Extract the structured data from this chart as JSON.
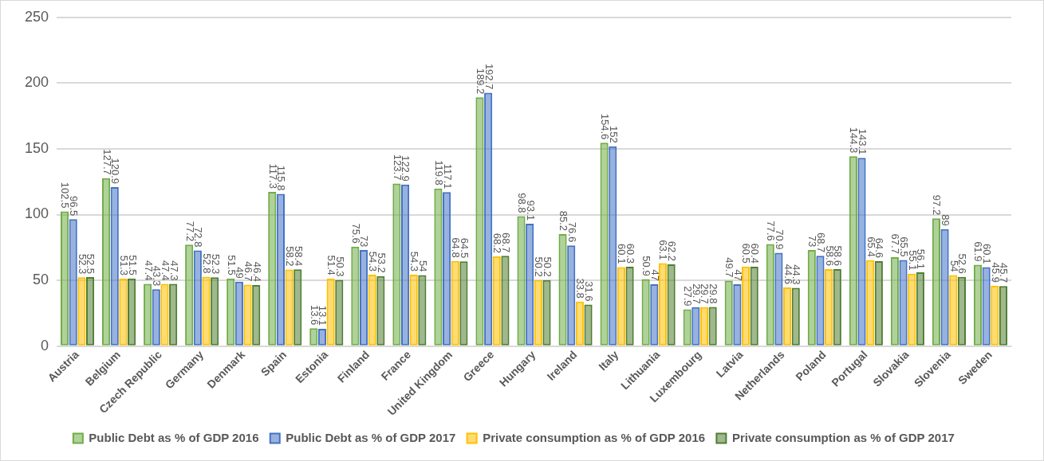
{
  "chart_data": {
    "type": "bar",
    "categories": [
      "Austria",
      "Belgium",
      "Czech Republic",
      "Germany",
      "Denmark",
      "Spain",
      "Estonia",
      "Finland",
      "France",
      "United Kingdom",
      "Greece",
      "Hungary",
      "Ireland",
      "Italy",
      "Lithuania",
      "Luxembourg",
      "Latvia",
      "Netherlands",
      "Poland",
      "Portugal",
      "Slovakia",
      "Slovenia",
      "Sweden"
    ],
    "series": [
      {
        "name": "Public Debt as % of GDP 2016",
        "color": "#70ad47",
        "values": [
          102.5,
          127.7,
          47.4,
          77.2,
          51.5,
          117.3,
          13.6,
          75.6,
          123.7,
          119.8,
          189.2,
          98.8,
          85.2,
          154.6,
          50.9,
          27.9,
          49.7,
          77.6,
          73,
          144.3,
          67.7,
          97.2,
          61.9
        ]
      },
      {
        "name": "Public Debt as % of GDP 2017",
        "color": "#4472c4",
        "values": [
          96.5,
          120.9,
          43.3,
          72.8,
          49,
          115.8,
          13.1,
          73,
          122.9,
          117.1,
          192.7,
          93.1,
          76.6,
          152,
          47,
          29.7,
          47,
          70.9,
          68.7,
          143.1,
          65.5,
          89,
          60.1
        ]
      },
      {
        "name": "Private consumption as % of GDP 2016",
        "color": "#ffc000",
        "values": [
          52.3,
          51.3,
          47.4,
          52.8,
          46.7,
          58.2,
          51.4,
          54.3,
          54.3,
          64.8,
          68.2,
          50.2,
          33.8,
          60.1,
          63.1,
          29.7,
          60.5,
          44.6,
          58.6,
          65.4,
          55.1,
          54,
          45.9
        ]
      },
      {
        "name": "Private consumption as % of GDP 2017",
        "color": "#507e32",
        "values": [
          52.5,
          51.5,
          47.3,
          52.3,
          46.4,
          58.4,
          50.3,
          53.2,
          54,
          64.5,
          68.7,
          50.2,
          31.6,
          60.3,
          62.2,
          29.8,
          60.4,
          44.3,
          58.6,
          64.6,
          56.1,
          52.6,
          45.7
        ]
      }
    ],
    "ylim": [
      0,
      250
    ],
    "yticks": [
      0,
      50,
      100,
      150,
      200,
      250
    ],
    "grid": "y",
    "legend": "bottom",
    "data_labels": true
  }
}
